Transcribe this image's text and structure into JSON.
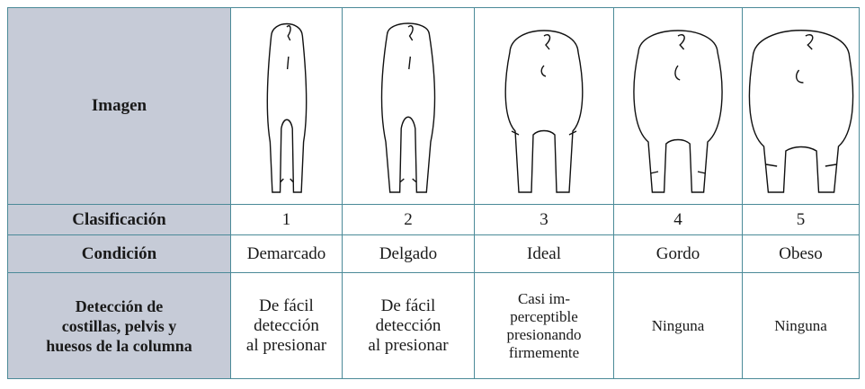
{
  "table": {
    "rows": [
      {
        "header": "Imagen"
      },
      {
        "header": "Clasificación",
        "cells": [
          1,
          2,
          3,
          4,
          5
        ]
      },
      {
        "header": "Condición",
        "cells": [
          "Demarcado",
          "Delgado",
          "Ideal",
          "Gordo",
          "Obeso"
        ]
      },
      {
        "header": "Detección de\ncostillas, pelvis y\nhuesos de la columna",
        "cells": [
          "De fácil\ndetección\nal presionar",
          "De fácil\ndetección\nal presionar",
          "Casi im-\nperceptible\npresionando\nfirmemente",
          "Ninguna",
          "Ninguna"
        ]
      }
    ]
  }
}
